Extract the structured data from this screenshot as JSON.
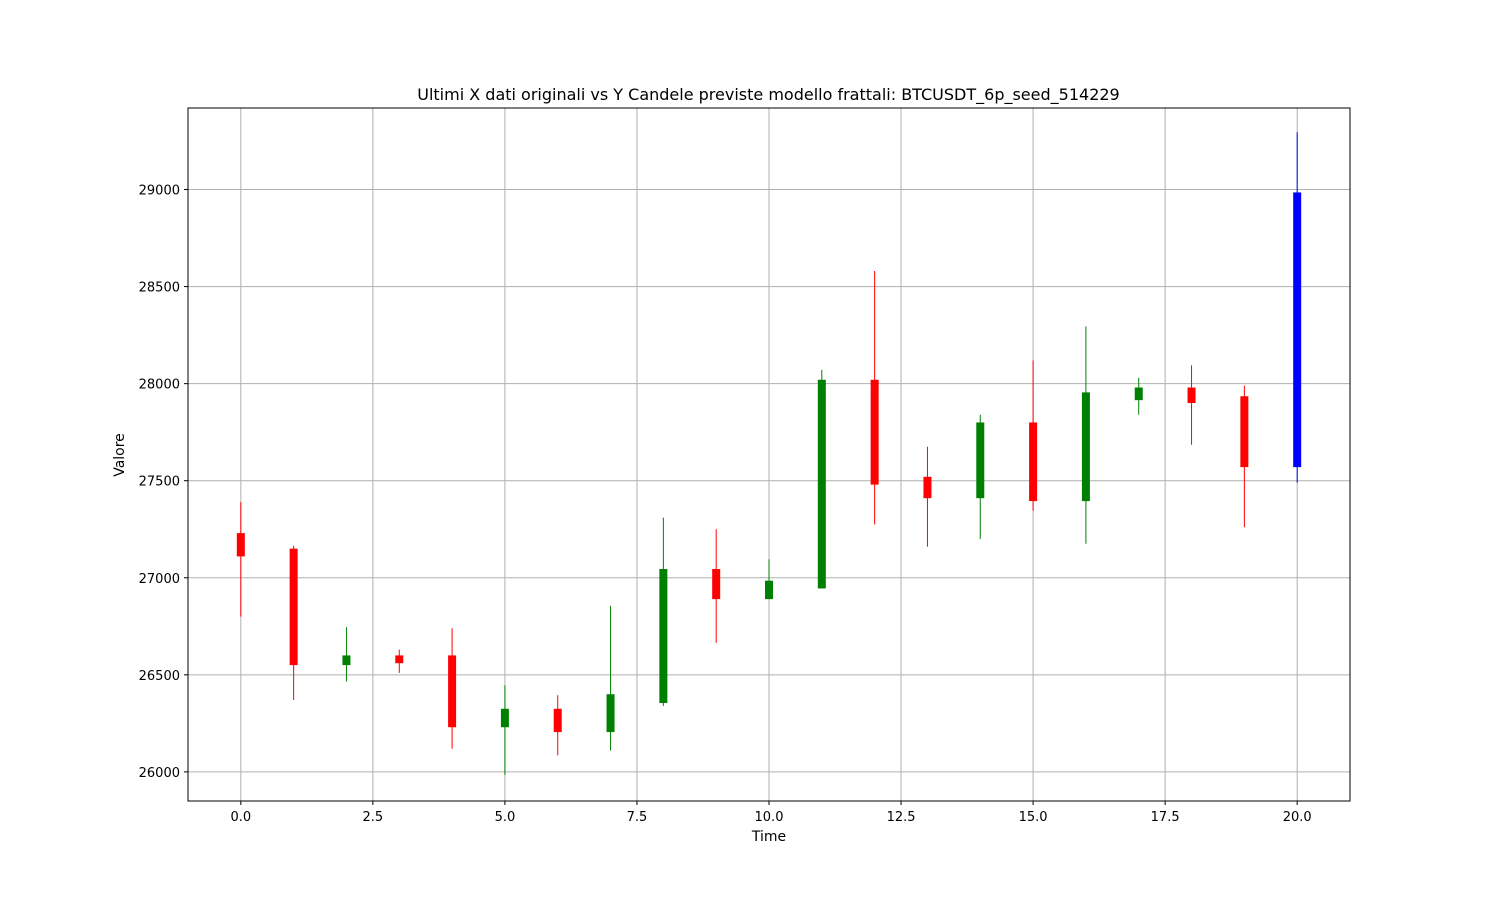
{
  "chart_data": {
    "type": "candlestick",
    "title": "Ultimi X dati originali vs Y Candele previste modello frattali: BTCUSDT_6p_seed_514229",
    "xlabel": "Time",
    "ylabel": "Valore",
    "xlim": [
      -1,
      21
    ],
    "ylim": [
      25850,
      29420
    ],
    "grid": true,
    "xticks": [
      0.0,
      2.5,
      5.0,
      7.5,
      10.0,
      12.5,
      15.0,
      17.5,
      20.0
    ],
    "xtick_labels": [
      "0.0",
      "2.5",
      "5.0",
      "7.5",
      "10.0",
      "12.5",
      "15.0",
      "17.5",
      "20.0"
    ],
    "yticks": [
      26000,
      26500,
      27000,
      27500,
      28000,
      28500,
      29000
    ],
    "ytick_labels": [
      "26000",
      "26500",
      "27000",
      "27500",
      "28000",
      "28500",
      "29000"
    ],
    "colors": {
      "up": "#008000",
      "down": "#ff0000",
      "forecast": "#0000ff"
    },
    "candles": [
      {
        "x": 0,
        "open": 27230,
        "high": 27390,
        "low": 26800,
        "close": 27110,
        "color": "down"
      },
      {
        "x": 1,
        "open": 27150,
        "high": 27165,
        "low": 26370,
        "close": 26550,
        "color": "down"
      },
      {
        "x": 2,
        "open": 26550,
        "high": 26745,
        "low": 26465,
        "close": 26600,
        "color": "up"
      },
      {
        "x": 3,
        "open": 26600,
        "high": 26630,
        "low": 26510,
        "close": 26560,
        "color": "down"
      },
      {
        "x": 4,
        "open": 26600,
        "high": 26740,
        "low": 26120,
        "close": 26230,
        "color": "down"
      },
      {
        "x": 5,
        "open": 26230,
        "high": 26445,
        "low": 25985,
        "close": 26325,
        "color": "up"
      },
      {
        "x": 6,
        "open": 26325,
        "high": 26395,
        "low": 26085,
        "close": 26205,
        "color": "down"
      },
      {
        "x": 7,
        "open": 26205,
        "high": 26855,
        "low": 26110,
        "close": 26400,
        "color": "up"
      },
      {
        "x": 8,
        "open": 26355,
        "high": 27310,
        "low": 26340,
        "close": 27045,
        "color": "up"
      },
      {
        "x": 9,
        "open": 27045,
        "high": 27250,
        "low": 26665,
        "close": 26890,
        "color": "down"
      },
      {
        "x": 10,
        "open": 26890,
        "high": 27095,
        "low": 26890,
        "close": 26985,
        "color": "up"
      },
      {
        "x": 11,
        "open": 26945,
        "high": 28070,
        "low": 26945,
        "close": 28020,
        "color": "up"
      },
      {
        "x": 12,
        "open": 28020,
        "high": 28580,
        "low": 27275,
        "close": 27480,
        "color": "down"
      },
      {
        "x": 13,
        "open": 27520,
        "high": 27675,
        "low": 27160,
        "close": 27410,
        "color": "down"
      },
      {
        "x": 14,
        "open": 27410,
        "high": 27840,
        "low": 27200,
        "close": 27800,
        "color": "up"
      },
      {
        "x": 15,
        "open": 27800,
        "high": 28120,
        "low": 27345,
        "close": 27395,
        "color": "down"
      },
      {
        "x": 16,
        "open": 27395,
        "high": 28295,
        "low": 27175,
        "close": 27955,
        "color": "up"
      },
      {
        "x": 17,
        "open": 27915,
        "high": 28030,
        "low": 27840,
        "close": 27980,
        "color": "up"
      },
      {
        "x": 18,
        "open": 27980,
        "high": 28095,
        "low": 27685,
        "close": 27900,
        "color": "down"
      },
      {
        "x": 19,
        "open": 27935,
        "high": 27990,
        "low": 27260,
        "close": 27570,
        "color": "down"
      },
      {
        "x": 20,
        "open": 27570,
        "high": 29295,
        "low": 27490,
        "close": 28985,
        "color": "forecast"
      }
    ]
  }
}
